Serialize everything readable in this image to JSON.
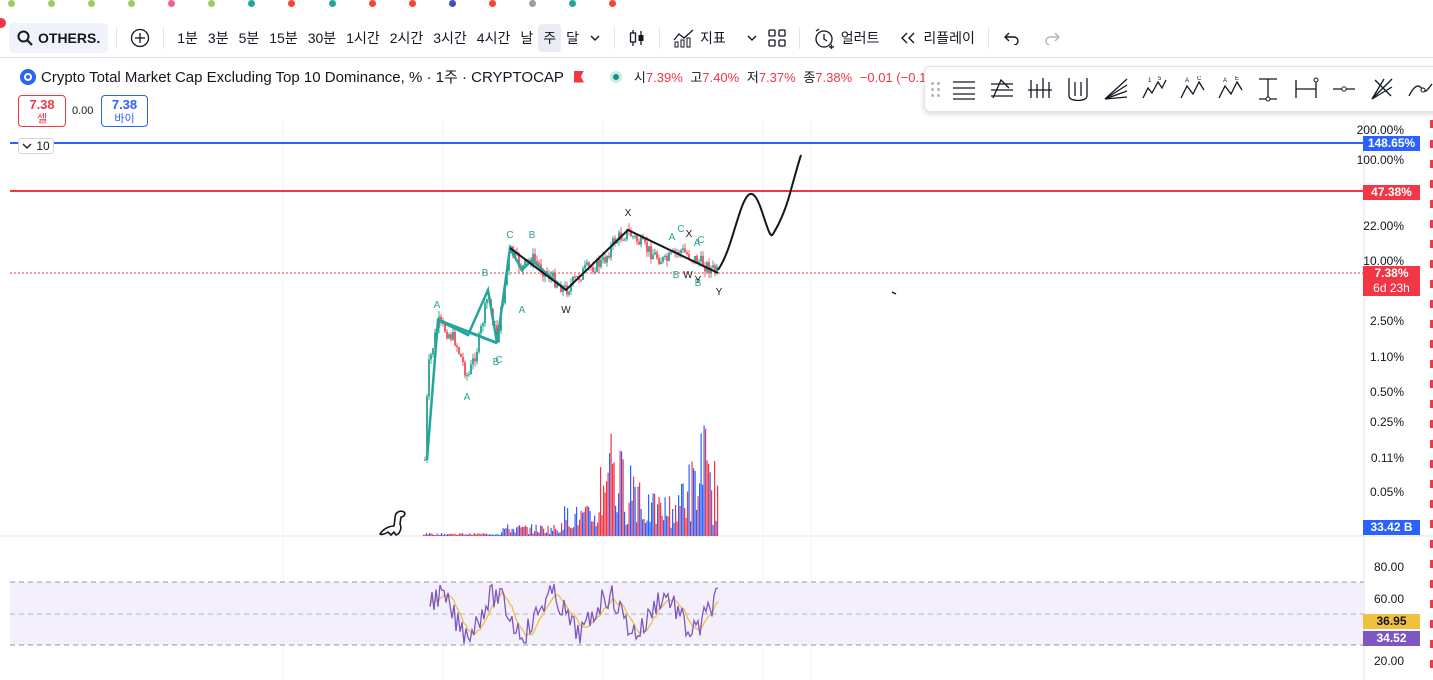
{
  "toolbar": {
    "symbol": "OTHERS.",
    "intervals": [
      "1분",
      "3분",
      "5분",
      "15분",
      "30분",
      "1시간",
      "2시간",
      "3시간",
      "4시간",
      "날",
      "주",
      "달"
    ],
    "active_interval": "주",
    "indicators_label": "지표",
    "alert_label": "얼러트",
    "replay_label": "리플레이"
  },
  "legend": {
    "title": "Crypto Total Market Cap Excluding Top 10 Dominance, % · 1주 · CRYPTOCAP",
    "open_label": "시",
    "open": "7.39%",
    "high_label": "고",
    "high": "7.40%",
    "low_label": "저",
    "low": "7.37%",
    "close_label": "종",
    "close": "7.38%",
    "change": "−0.01 (−0.1"
  },
  "trade": {
    "sell_price": "7.38",
    "sell_label": "셀",
    "spread": "0.00",
    "buy_price": "7.38",
    "buy_label": "바이"
  },
  "collapse_count": "10",
  "price_axis": [
    "200.00%",
    "100.00%",
    "22.00%",
    "10.00%",
    "2.50%",
    "1.10%",
    "0.50%",
    "0.25%",
    "0.11%",
    "0.05%"
  ],
  "price_tags": {
    "blue_line": "148.65%",
    "red_line": "47.38%",
    "last_price": "7.38%",
    "countdown": "6d 23h",
    "volume": "33.42 B"
  },
  "rsi_axis": [
    "80.00",
    "60.00",
    "20.00"
  ],
  "rsi_tags": {
    "ma": "36.95",
    "rsi": "34.52"
  },
  "wave_labels": [
    "A",
    "B",
    "A",
    "B",
    "C",
    "B",
    "C",
    "A",
    "W",
    "X",
    "Y",
    "A",
    "C",
    "B",
    "B",
    "W",
    "Y",
    "X",
    "A",
    "C"
  ],
  "colors": {
    "up": "#089981",
    "down": "#f23645",
    "blue": "#2962ff",
    "teal_wave": "#26a69a",
    "rsi": "#7e57c2",
    "rsi_ma": "#f0c040",
    "rsi_band": "#f3effb"
  }
}
